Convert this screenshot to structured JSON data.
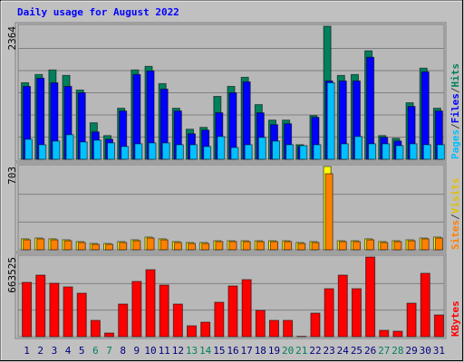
{
  "chart_data": [
    {
      "type": "bar",
      "title": "Daily usage for August 2022",
      "separator": "/",
      "ylim": [
        0,
        2364
      ],
      "yticks": [
        2364
      ],
      "grid": true,
      "series": [
        {
          "name": "Hits",
          "color": "#00805c",
          "values": [
            1360,
            1506,
            1587,
            1490,
            1230,
            648,
            421,
            907,
            1587,
            1651,
            1344,
            907,
            534,
            567,
            1117,
            1295,
            1457,
            971,
            696,
            696,
            259,
            777,
            2364,
            1490,
            1506,
            1927,
            421,
            372,
            1004,
            1619,
            907
          ]
        },
        {
          "name": "Files",
          "color": "#0000ff",
          "values": [
            1295,
            1441,
            1360,
            1295,
            1182,
            486,
            356,
            858,
            1506,
            1570,
            1247,
            858,
            453,
            518,
            826,
            1182,
            1376,
            826,
            615,
            631,
            227,
            745,
            1392,
            1392,
            1392,
            1813,
            389,
            324,
            939,
            1554,
            858
          ]
        },
        {
          "name": "Pages",
          "color": "#00c0ff",
          "values": [
            356,
            259,
            324,
            437,
            308,
            340,
            291,
            227,
            275,
            291,
            291,
            259,
            259,
            227,
            405,
            210,
            259,
            389,
            324,
            259,
            243,
            259,
            1360,
            275,
            405,
            275,
            275,
            243,
            275,
            259,
            259
          ]
        }
      ]
    },
    {
      "type": "bar",
      "separator": "/",
      "ylim": [
        0,
        703
      ],
      "yticks": [
        703
      ],
      "grid": true,
      "series": [
        {
          "name": "Visits",
          "color": "#ffff00",
          "values": [
            92,
            99,
            92,
            84,
            69,
            53,
            53,
            69,
            84,
            107,
            92,
            69,
            61,
            61,
            76,
            76,
            76,
            76,
            76,
            76,
            61,
            69,
            703,
            76,
            76,
            92,
            69,
            76,
            84,
            99,
            107
          ]
        },
        {
          "name": "Sites",
          "color": "#ff8000",
          "values": [
            84,
            92,
            84,
            76,
            61,
            46,
            46,
            61,
            76,
            99,
            84,
            61,
            53,
            53,
            69,
            69,
            69,
            69,
            69,
            69,
            53,
            61,
            642,
            69,
            69,
            84,
            61,
            69,
            76,
            92,
            99
          ]
        }
      ]
    },
    {
      "type": "bar",
      "ylim": [
        0,
        663525
      ],
      "yticks": [
        663525
      ],
      "grid": true,
      "categories": [
        "1",
        "2",
        "3",
        "4",
        "5",
        "6",
        "7",
        "8",
        "9",
        "10",
        "11",
        "12",
        "13",
        "14",
        "15",
        "16",
        "17",
        "18",
        "19",
        "20",
        "21",
        "22",
        "23",
        "24",
        "25",
        "26",
        "27",
        "28",
        "29",
        "30",
        "31"
      ],
      "category_colors": [
        "#000080",
        "#000080",
        "#000080",
        "#000080",
        "#000080",
        "#00805c",
        "#00805c",
        "#000080",
        "#000080",
        "#000080",
        "#000080",
        "#000080",
        "#00805c",
        "#00805c",
        "#000080",
        "#000080",
        "#000080",
        "#000080",
        "#000080",
        "#00805c",
        "#00805c",
        "#000080",
        "#000080",
        "#000080",
        "#000080",
        "#000080",
        "#00805c",
        "#00805c",
        "#000080",
        "#000080",
        "#000080"
      ],
      "series": [
        {
          "name": "KBytes",
          "color": "#ff0000",
          "values": [
            452400,
            512720,
            444860,
            414700,
            361920,
            135720,
            30160,
            271440,
            459940,
            557960,
            429780,
            271440,
            90480,
            120640,
            286520,
            422240,
            475020,
            218660,
            135720,
            135720,
            3000,
            196040,
            399620,
            512720,
            399620,
            663525,
            52780,
            45240,
            278980,
            527800,
            180960
          ]
        }
      ]
    }
  ]
}
